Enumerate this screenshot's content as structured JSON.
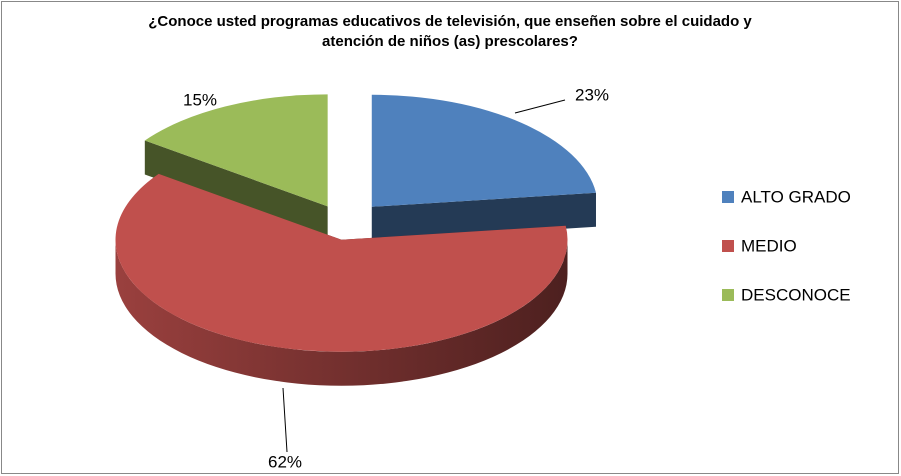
{
  "chart_data": {
    "type": "pie",
    "title": "¿Conoce usted programas educativos de televisión, que enseñen sobre el cuidado y atención de niños (as) prescolares?",
    "categories": [
      "ALTO GRADO",
      "MEDIO",
      "DESCONOCE"
    ],
    "values": [
      23,
      62,
      15
    ],
    "value_labels": [
      "23%",
      "62%",
      "15%"
    ],
    "colors": [
      "#4f81bd",
      "#c0504d",
      "#9bbb59"
    ],
    "legend": "right"
  }
}
